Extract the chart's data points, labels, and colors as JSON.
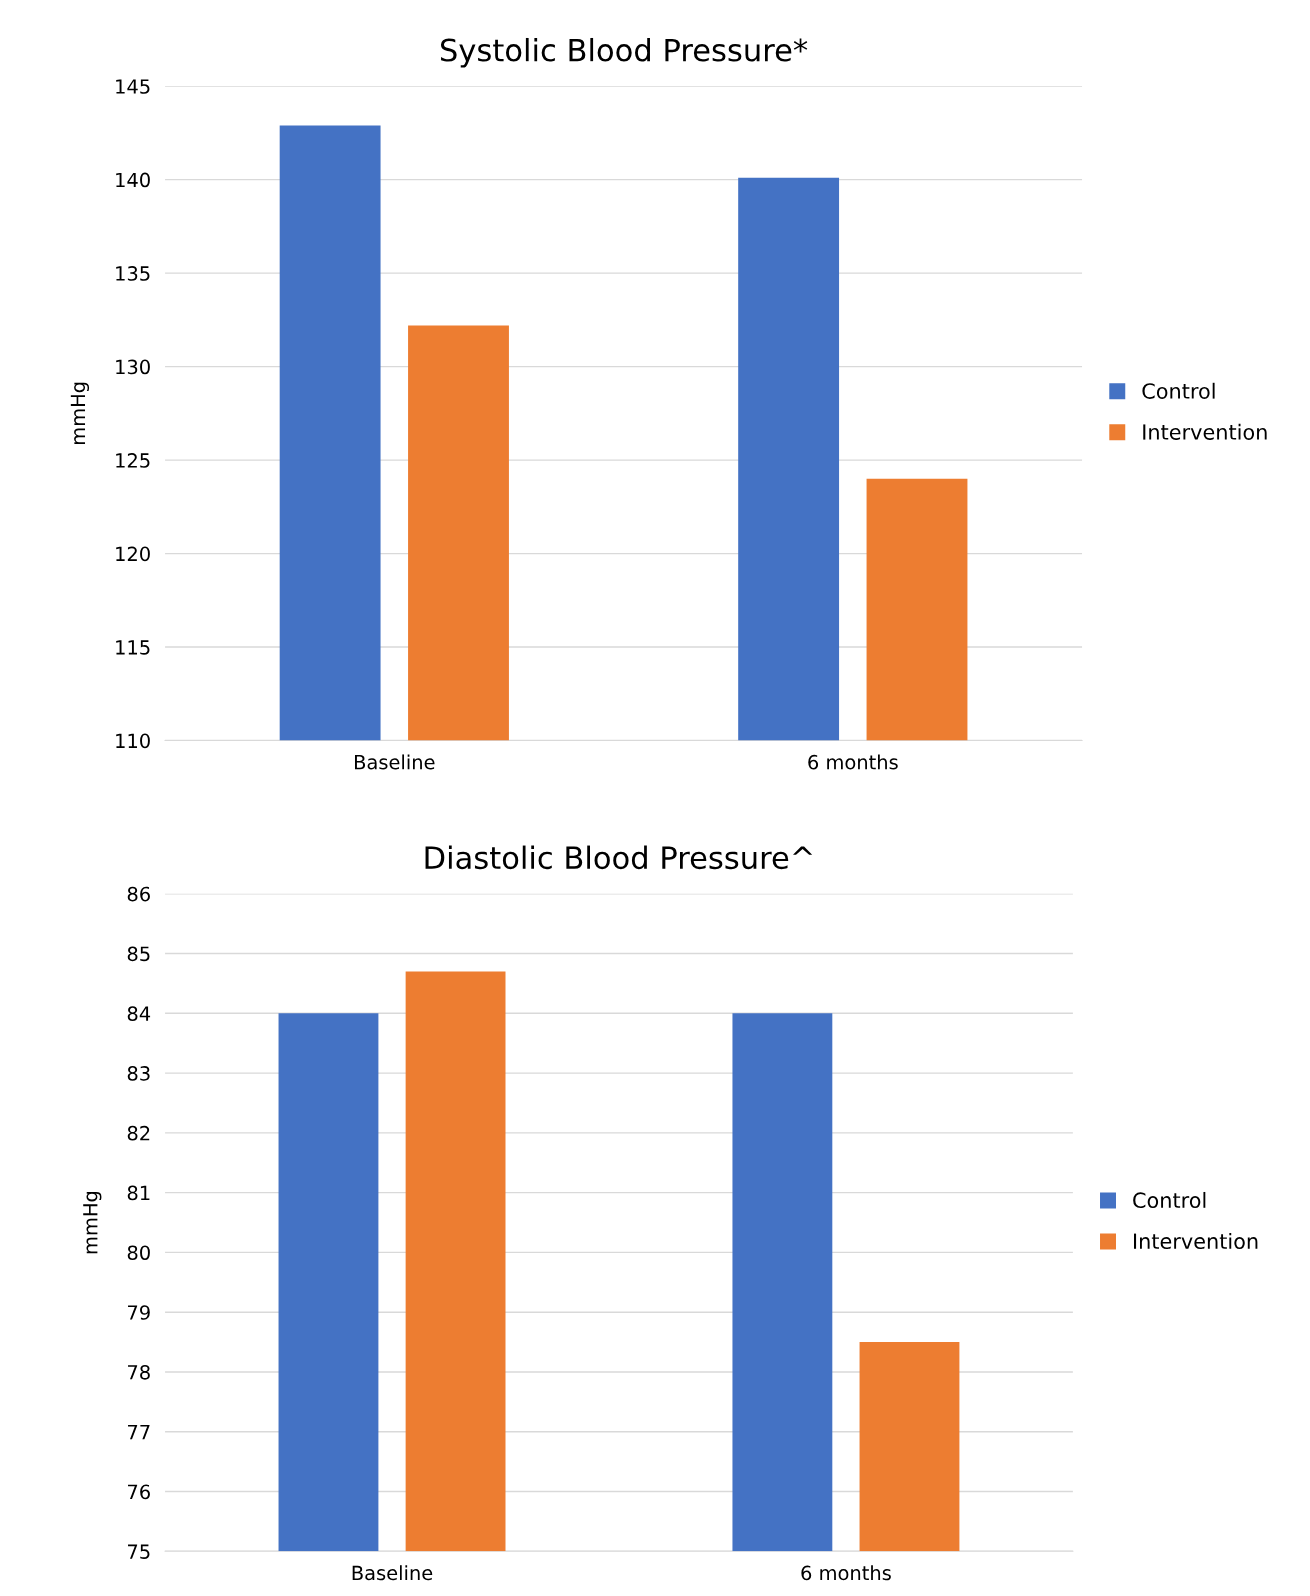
{
  "chart_data": [
    {
      "type": "bar",
      "title": "Systolic Blood Pressure*",
      "ylabel": "mmHg",
      "categories": [
        "Baseline",
        "6 months"
      ],
      "series": [
        {
          "name": "Control",
          "color": "#4472c4",
          "values": [
            142.9,
            140.1
          ]
        },
        {
          "name": "Intervention",
          "color": "#ed7d31",
          "values": [
            132.2,
            124.0
          ]
        }
      ],
      "ylim": [
        110,
        145
      ],
      "yticks": [
        110,
        115,
        120,
        125,
        130,
        135,
        140,
        145
      ],
      "grid": "y",
      "legend": "right"
    },
    {
      "type": "bar",
      "title": "Diastolic Blood Pressure^",
      "ylabel": "mmHg",
      "categories": [
        "Baseline",
        "6 months"
      ],
      "series": [
        {
          "name": "Control",
          "color": "#4472c4",
          "values": [
            84.0,
            84.0
          ]
        },
        {
          "name": "Intervention",
          "color": "#ed7d31",
          "values": [
            84.7,
            78.5
          ]
        }
      ],
      "ylim": [
        75,
        86
      ],
      "yticks": [
        75,
        76,
        77,
        78,
        79,
        80,
        81,
        82,
        83,
        84,
        85,
        86
      ],
      "grid": "y",
      "legend": "right"
    }
  ]
}
